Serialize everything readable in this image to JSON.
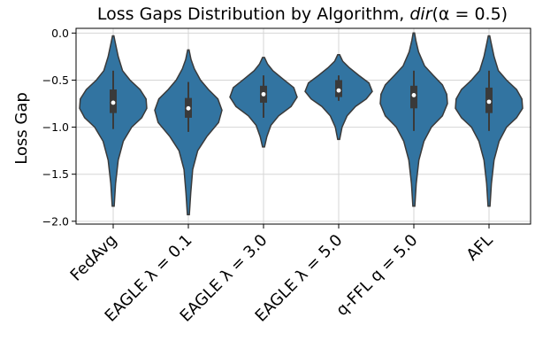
{
  "chart_data": {
    "type": "violin",
    "title_prefix": "Loss Gaps Distribution by Algorithm, ",
    "title_math": "dir",
    "title_suffix": "(α = 0.5)",
    "xlabel": "",
    "ylabel": "Loss Gap",
    "ylim": [
      -2.03,
      0.05
    ],
    "yticks": [
      "0.0",
      "−0.5",
      "−1.0",
      "−1.5",
      "−2.0"
    ],
    "ytick_values": [
      0.0,
      -0.5,
      -1.0,
      -1.5,
      -2.0
    ],
    "grid": true,
    "color": "#3274a1",
    "categories": [
      "FedAvg",
      "EAGLE λ = 0.1",
      "EAGLE λ = 3.0",
      "EAGLE λ = 5.0",
      "q-FFL q = 5.0",
      "AFL"
    ],
    "series": [
      {
        "category": "FedAvg",
        "min": -1.84,
        "max": -0.03,
        "whisker_low": -1.02,
        "whisker_high": -0.4,
        "q1": -0.85,
        "median": -0.74,
        "q3": -0.6,
        "profile": [
          [
            -1.84,
            0.03
          ],
          [
            -1.6,
            0.07
          ],
          [
            -1.35,
            0.15
          ],
          [
            -1.15,
            0.3
          ],
          [
            -1.0,
            0.55
          ],
          [
            -0.9,
            0.85
          ],
          [
            -0.8,
            1.0
          ],
          [
            -0.7,
            0.98
          ],
          [
            -0.6,
            0.8
          ],
          [
            -0.5,
            0.5
          ],
          [
            -0.4,
            0.28
          ],
          [
            -0.25,
            0.15
          ],
          [
            -0.1,
            0.06
          ],
          [
            -0.03,
            0.02
          ]
        ]
      },
      {
        "category": "EAGLE λ = 0.1",
        "min": -1.93,
        "max": -0.18,
        "whisker_low": -1.05,
        "whisker_high": -0.52,
        "q1": -0.9,
        "median": -0.8,
        "q3": -0.69,
        "profile": [
          [
            -1.93,
            0.03
          ],
          [
            -1.7,
            0.07
          ],
          [
            -1.45,
            0.13
          ],
          [
            -1.25,
            0.28
          ],
          [
            -1.1,
            0.55
          ],
          [
            -0.95,
            0.9
          ],
          [
            -0.82,
            1.0
          ],
          [
            -0.7,
            0.88
          ],
          [
            -0.6,
            0.6
          ],
          [
            -0.5,
            0.36
          ],
          [
            -0.38,
            0.18
          ],
          [
            -0.28,
            0.08
          ],
          [
            -0.18,
            0.02
          ]
        ]
      },
      {
        "category": "EAGLE λ = 3.0",
        "min": -1.21,
        "max": -0.26,
        "whisker_low": -0.9,
        "whisker_high": -0.45,
        "q1": -0.74,
        "median": -0.65,
        "q3": -0.56,
        "profile": [
          [
            -1.21,
            0.03
          ],
          [
            -1.1,
            0.1
          ],
          [
            -0.98,
            0.22
          ],
          [
            -0.88,
            0.45
          ],
          [
            -0.78,
            0.82
          ],
          [
            -0.68,
            1.0
          ],
          [
            -0.58,
            0.9
          ],
          [
            -0.48,
            0.55
          ],
          [
            -0.4,
            0.28
          ],
          [
            -0.33,
            0.12
          ],
          [
            -0.26,
            0.03
          ]
        ]
      },
      {
        "category": "EAGLE λ = 5.0",
        "min": -1.13,
        "max": -0.23,
        "whisker_low": -0.72,
        "whisker_high": -0.45,
        "q1": -0.68,
        "median": -0.61,
        "q3": -0.5,
        "profile": [
          [
            -1.13,
            0.03
          ],
          [
            -1.0,
            0.1
          ],
          [
            -0.88,
            0.25
          ],
          [
            -0.78,
            0.5
          ],
          [
            -0.7,
            0.82
          ],
          [
            -0.62,
            1.0
          ],
          [
            -0.53,
            0.9
          ],
          [
            -0.45,
            0.6
          ],
          [
            -0.37,
            0.32
          ],
          [
            -0.3,
            0.12
          ],
          [
            -0.23,
            0.03
          ]
        ]
      },
      {
        "category": "q-FFL q = 5.0",
        "min": -1.84,
        "max": 0.0,
        "whisker_low": -1.04,
        "whisker_high": -0.4,
        "q1": -0.8,
        "median": -0.66,
        "q3": -0.56,
        "profile": [
          [
            -1.84,
            0.03
          ],
          [
            -1.6,
            0.07
          ],
          [
            -1.35,
            0.15
          ],
          [
            -1.15,
            0.3
          ],
          [
            -1.0,
            0.52
          ],
          [
            -0.88,
            0.85
          ],
          [
            -0.75,
            1.0
          ],
          [
            -0.65,
            0.98
          ],
          [
            -0.55,
            0.85
          ],
          [
            -0.45,
            0.58
          ],
          [
            -0.35,
            0.32
          ],
          [
            -0.2,
            0.14
          ],
          [
            -0.08,
            0.06
          ],
          [
            0.0,
            0.02
          ]
        ]
      },
      {
        "category": "AFL",
        "min": -1.84,
        "max": -0.03,
        "whisker_low": -1.04,
        "whisker_high": -0.4,
        "q1": -0.85,
        "median": -0.73,
        "q3": -0.58,
        "profile": [
          [
            -1.84,
            0.03
          ],
          [
            -1.6,
            0.07
          ],
          [
            -1.35,
            0.15
          ],
          [
            -1.15,
            0.3
          ],
          [
            -1.0,
            0.52
          ],
          [
            -0.9,
            0.82
          ],
          [
            -0.8,
            1.0
          ],
          [
            -0.7,
            0.98
          ],
          [
            -0.6,
            0.82
          ],
          [
            -0.5,
            0.52
          ],
          [
            -0.4,
            0.28
          ],
          [
            -0.25,
            0.15
          ],
          [
            -0.1,
            0.06
          ],
          [
            -0.03,
            0.02
          ]
        ]
      }
    ]
  }
}
